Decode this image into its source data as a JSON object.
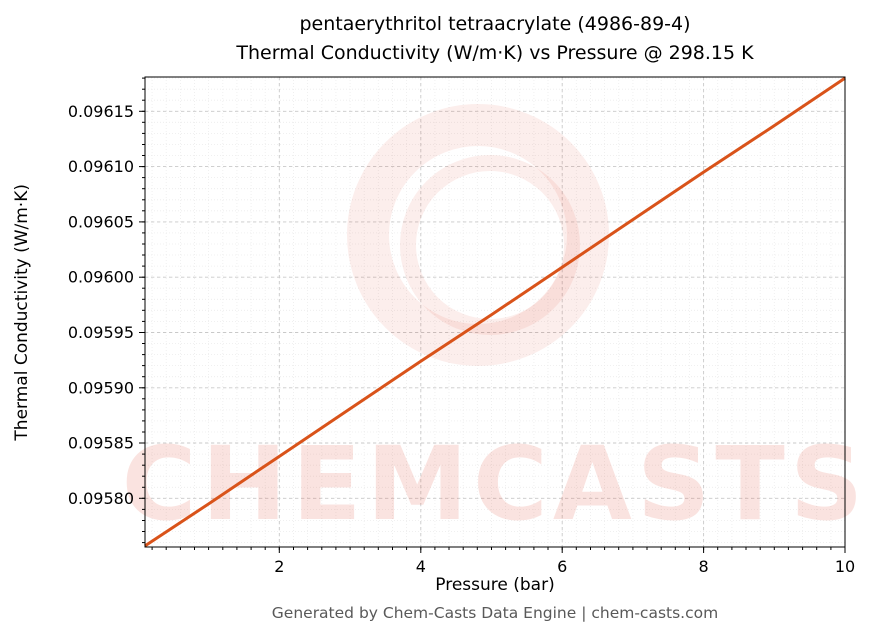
{
  "chart_data": {
    "type": "line",
    "title": "pentaerythritol tetraacrylate (4986-89-4)",
    "subtitle": "Thermal Conductivity (W/m·K) vs Pressure @ 298.15 K",
    "xlabel": "Pressure (bar)",
    "ylabel": "Thermal Conductivity (W/m·K)",
    "xlim": [
      0.1,
      10
    ],
    "ylim": [
      0.095756,
      0.096181
    ],
    "x_ticks": [
      2,
      4,
      6,
      8,
      10
    ],
    "x_tick_labels": [
      "2",
      "4",
      "6",
      "8",
      "10"
    ],
    "y_ticks": [
      0.0958,
      0.09585,
      0.0959,
      0.09595,
      0.096,
      0.09605,
      0.0961,
      0.09615
    ],
    "y_tick_labels": [
      "0.09580",
      "0.09585",
      "0.09590",
      "0.09595",
      "0.09600",
      "0.09605",
      "0.09610",
      "0.09615"
    ],
    "x_minor_step": 0.2,
    "y_minor_step": 1e-05,
    "grid": true,
    "legend": "none",
    "line_color": "#d9531a",
    "line_width": 3,
    "series": [
      {
        "name": "thermal_conductivity_vs_pressure",
        "x": [
          0.1,
          1,
          2,
          3,
          4,
          5,
          6,
          7,
          8,
          9,
          10
        ],
        "y": [
          0.095757,
          0.095795,
          0.095838,
          0.095881,
          0.095924,
          0.095966,
          0.096009,
          0.096052,
          0.096095,
          0.096137,
          0.09618
        ]
      }
    ]
  },
  "watermark": {
    "text": "CHEMCASTS",
    "color": "#e0442a",
    "text_opacity": 0.14,
    "logo_opacity": 0.09
  },
  "footer": {
    "text": "Generated by Chem-Casts Data Engine | chem-casts.com"
  }
}
